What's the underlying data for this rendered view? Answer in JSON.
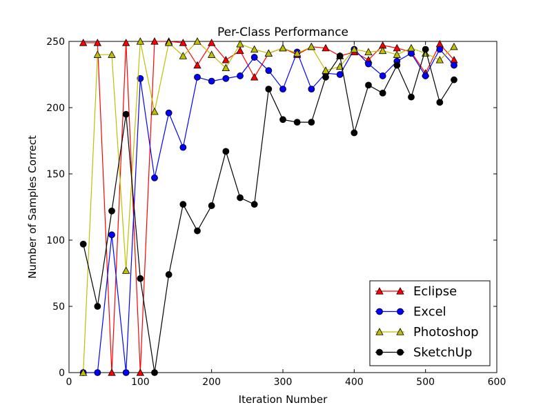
{
  "chart_data": {
    "type": "line",
    "title": "Per-Class Performance",
    "xlabel": "Iteration Number",
    "ylabel": "Number of Samples Correct",
    "xlim": [
      0,
      600
    ],
    "ylim": [
      0,
      250
    ],
    "xticks": [
      0,
      100,
      200,
      300,
      400,
      500,
      600
    ],
    "yticks": [
      0,
      50,
      100,
      150,
      200,
      250
    ],
    "grid": false,
    "legend_position": "lower-right",
    "x": [
      20,
      40,
      60,
      80,
      100,
      120,
      140,
      160,
      180,
      200,
      220,
      240,
      260,
      280,
      300,
      320,
      340,
      360,
      380,
      400,
      420,
      440,
      460,
      480,
      500,
      520,
      540
    ],
    "series": [
      {
        "name": "Eclipse",
        "color": "#ff0000",
        "marker": "triangle",
        "values": [
          249,
          249,
          0,
          249,
          0,
          250,
          250,
          249,
          232,
          249,
          236,
          243,
          223,
          241,
          245,
          240,
          246,
          245,
          239,
          242,
          236,
          247,
          245,
          242,
          226,
          248,
          236
        ]
      },
      {
        "name": "Excel",
        "color": "#0000ff",
        "marker": "circle",
        "values": [
          0,
          0,
          104,
          0,
          222,
          147,
          196,
          170,
          223,
          220,
          222,
          224,
          238,
          228,
          214,
          242,
          214,
          226,
          225,
          244,
          233,
          224,
          235,
          241,
          224,
          244,
          232
        ]
      },
      {
        "name": "Photoshop",
        "color": "#bfbf00",
        "marker": "triangle",
        "values": [
          0,
          240,
          240,
          77,
          250,
          197,
          249,
          239,
          250,
          240,
          230,
          248,
          244,
          241,
          245,
          241,
          246,
          228,
          231,
          244,
          242,
          243,
          240,
          245,
          241,
          236,
          246
        ]
      },
      {
        "name": "SketchUp",
        "color": "#000000",
        "marker": "circle",
        "values": [
          97,
          50,
          122,
          195,
          71,
          0,
          74,
          127,
          107,
          126,
          167,
          132,
          127,
          214,
          191,
          189,
          189,
          223,
          239,
          181,
          217,
          211,
          232,
          208,
          244,
          204,
          221
        ]
      }
    ]
  }
}
